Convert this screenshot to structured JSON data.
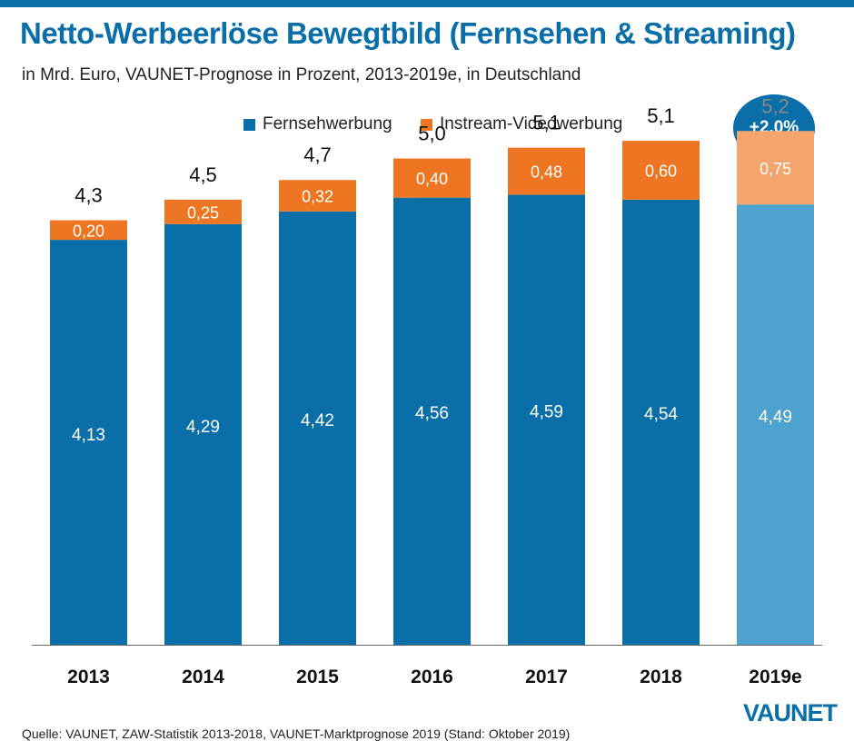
{
  "header": {
    "title": "Netto-Werbeerlöse Bewegtbild (Fernsehen & Streaming)",
    "subtitle": "in Mrd. Euro, VAUNET-Prognose in Prozent, 2013-2019e, in Deutschland"
  },
  "badge": {
    "text": "+2,0%"
  },
  "footer": {
    "source": "Quelle: VAUNET, ZAW-Statistik 2013-2018, VAUNET-Marktprognose 2019 (Stand: Oktober 2019)",
    "logo": "VAUNET"
  },
  "colors": {
    "tv": "#0a6fa8",
    "instream": "#ee7623",
    "tv_forecast": "#4da3cd",
    "instream_forecast": "#f4a56d",
    "total_label": "#111111",
    "total_label_forecast": "#888888"
  },
  "chart_data": {
    "type": "bar",
    "stacked": true,
    "categories": [
      "2013",
      "2014",
      "2015",
      "2016",
      "2017",
      "2018",
      "2019e"
    ],
    "series": [
      {
        "name": "Fernsehwerbung",
        "values": [
          4.13,
          4.29,
          4.42,
          4.56,
          4.59,
          4.54,
          4.49
        ],
        "labels": [
          "4,13",
          "4,29",
          "4,42",
          "4,56",
          "4,59",
          "4,54",
          "4,49"
        ]
      },
      {
        "name": "Instream-Videowerbung",
        "values": [
          0.2,
          0.25,
          0.32,
          0.4,
          0.48,
          0.6,
          0.75
        ],
        "labels": [
          "0,20",
          "0,25",
          "0,32",
          "0,40",
          "0,48",
          "0,60",
          "0,75"
        ]
      }
    ],
    "totals": [
      "4,3",
      "4,5",
      "4,7",
      "5,0",
      "5,1",
      "5,1",
      "5,2"
    ],
    "forecast_category": "2019e",
    "ylim": [
      0,
      5.65
    ],
    "legend_position": "top",
    "grid": false
  }
}
